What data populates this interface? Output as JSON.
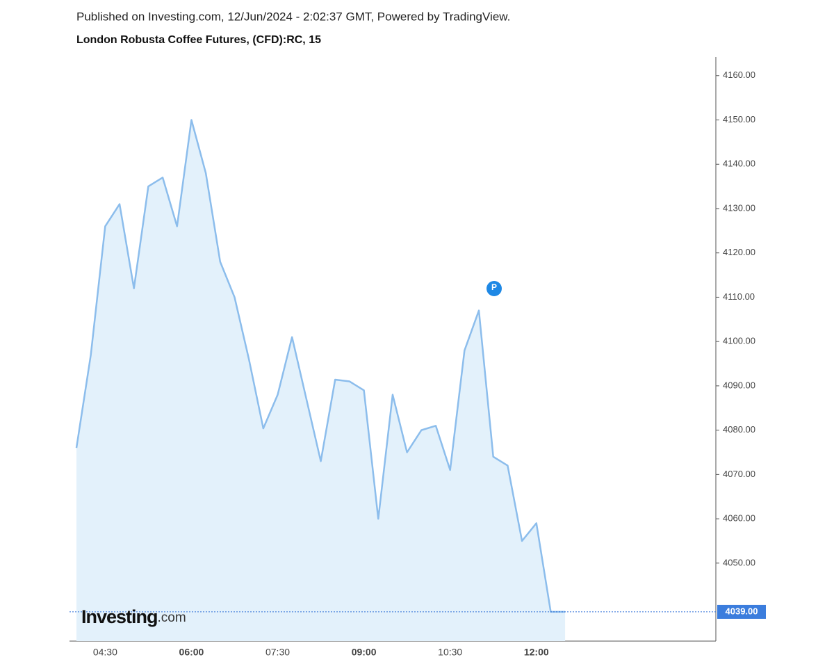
{
  "header": {
    "published": "Published on Investing.com, 12/Jun/2024 - 2:02:37 GMT, Powered by TradingView."
  },
  "chart_data": {
    "type": "area",
    "title": "London Robusta Coffee Futures, (CFD):RC, 15",
    "categories": [
      null,
      null,
      "04:30",
      null,
      null,
      null,
      null,
      null,
      "06:00",
      null,
      null,
      null,
      null,
      null,
      "07:30",
      null,
      null,
      null,
      null,
      null,
      "09:00",
      null,
      null,
      null,
      null,
      null,
      "10:30",
      null,
      null,
      null,
      null,
      null,
      "12:00",
      null,
      null
    ],
    "values": [
      4076,
      4097,
      4126,
      4131,
      4112,
      4135,
      4137,
      4126,
      4150,
      4138,
      4118,
      4110,
      4096,
      4080.4,
      4088,
      4101,
      4087,
      4073,
      4091.4,
      4091,
      4089,
      4060,
      4088,
      4075,
      4080,
      4081,
      4071,
      4098,
      4107,
      4074,
      4072,
      4055,
      4059,
      4039,
      4039
    ],
    "color": "#8cbdec",
    "fill": "#e3f1fb",
    "ylim": [
      4032.4,
      4164.2
    ],
    "yticks": [
      {
        "value": 4050,
        "label": "4050.00"
      },
      {
        "value": 4060,
        "label": "4060.00"
      },
      {
        "value": 4070,
        "label": "4070.00"
      },
      {
        "value": 4080,
        "label": "4080.00"
      },
      {
        "value": 4090,
        "label": "4090.00"
      },
      {
        "value": 4100,
        "label": "4100.00"
      },
      {
        "value": 4110,
        "label": "4110.00"
      },
      {
        "value": 4120,
        "label": "4120.00"
      },
      {
        "value": 4130,
        "label": "4130.00"
      },
      {
        "value": 4140,
        "label": "4140.00"
      },
      {
        "value": 4150,
        "label": "4150.00"
      },
      {
        "value": 4160,
        "label": "4160.00"
      }
    ],
    "current_price": {
      "value": 4039,
      "label": "4039.00"
    },
    "marker_label": "P",
    "watermark": {
      "brand": "Investing",
      "suffix": ".com"
    }
  }
}
